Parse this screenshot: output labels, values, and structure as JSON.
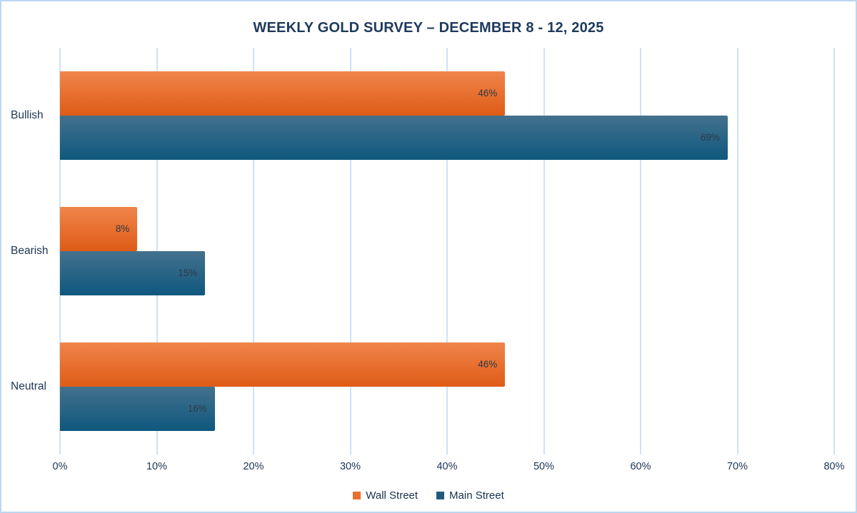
{
  "chart": {
    "title": "WEEKLY GOLD SURVEY – DECEMBER 8 - 12, 2025"
  },
  "chart_data": {
    "type": "bar",
    "orientation": "horizontal",
    "title": "WEEKLY GOLD SURVEY – DECEMBER 8 - 12, 2025",
    "categories": [
      "Bullish",
      "Bearish",
      "Neutral"
    ],
    "series": [
      {
        "name": "Wall Street",
        "values": [
          46,
          8,
          46
        ],
        "gradient_top": "#f0854b",
        "gradient_bottom": "#df5b16",
        "legend_color": "#e8702c"
      },
      {
        "name": "Main Street",
        "values": [
          69,
          15,
          16
        ],
        "gradient_top": "#44718d",
        "gradient_bottom": "#0e587e",
        "legend_color": "#1f5a7b"
      }
    ],
    "data_label_suffix": "%",
    "xlabel": "",
    "ylabel": "",
    "xlim": [
      0,
      80
    ],
    "x_ticks": [
      "0%",
      "10%",
      "20%",
      "30%",
      "40%",
      "50%",
      "60%",
      "70%",
      "80%"
    ],
    "grid": true,
    "gridline_color": "#cfe2f5",
    "legend_position": "bottom",
    "label_color": "#1e3552",
    "data_label_color": "#2e3947",
    "frame_color": "#bcd7f1"
  }
}
